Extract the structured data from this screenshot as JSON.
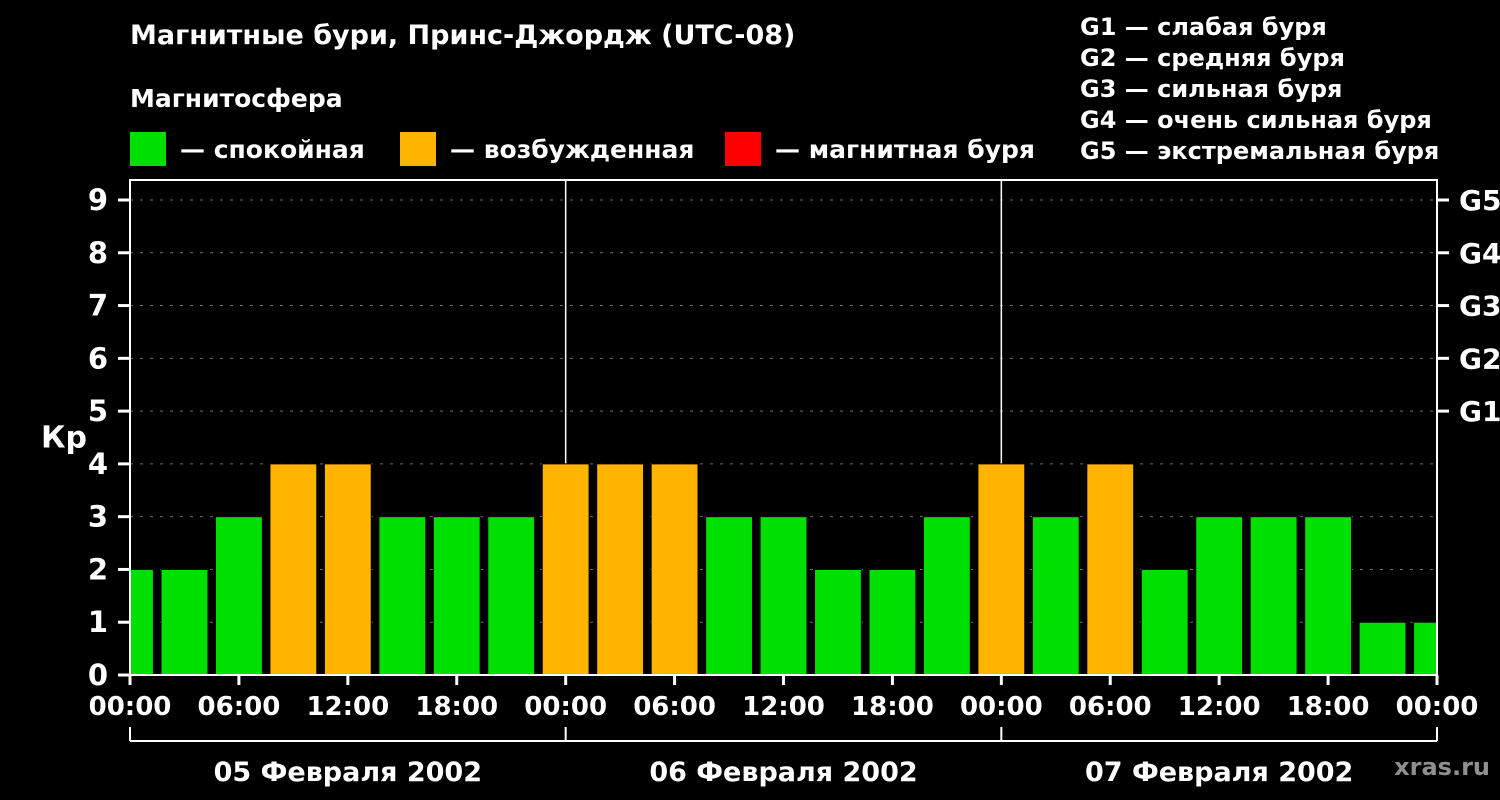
{
  "title": "Магнитные бури, Принс-Джордж (UTC-08)",
  "subtitle": "Магнитосфера",
  "legend": [
    {
      "state": "quiet",
      "label": "— спокойная",
      "color": "#00e000"
    },
    {
      "state": "active",
      "label": "— возбужденная",
      "color": "#ffb400"
    },
    {
      "state": "storm",
      "label": "— магнитная буря",
      "color": "#ff0000"
    }
  ],
  "g_legend": [
    "G1 — слабая буря",
    "G2 — средняя буря",
    "G3 — сильная буря",
    "G4 — очень сильная буря",
    "G5 — экстремальная буря"
  ],
  "watermark": "xras.ru",
  "chart_data": {
    "type": "bar",
    "title": "Магнитные бури, Принс-Джордж (UTC-08)",
    "ylabel": "Кр",
    "ylim": [
      0,
      9.4
    ],
    "yticks": [
      0,
      1,
      2,
      3,
      4,
      5,
      6,
      7,
      8,
      9
    ],
    "right_axis_ticks": [
      {
        "label": "G1",
        "value": 5
      },
      {
        "label": "G2",
        "value": 6
      },
      {
        "label": "G3",
        "value": 7
      },
      {
        "label": "G4",
        "value": 8
      },
      {
        "label": "G5",
        "value": 9
      }
    ],
    "x_hours": [
      0,
      3,
      6,
      9,
      12,
      15,
      18,
      21,
      24,
      27,
      30,
      33,
      36,
      39,
      42,
      45,
      48,
      51,
      54,
      57,
      60,
      63,
      66,
      69,
      72
    ],
    "kp_values": [
      2,
      2,
      3,
      4,
      4,
      3,
      3,
      3,
      4,
      4,
      4,
      3,
      3,
      2,
      2,
      3,
      4,
      3,
      4,
      2,
      3,
      3,
      3,
      1,
      1
    ],
    "bar_color_rule": {
      "quiet_max": 3,
      "active_max": 4
    },
    "colors": {
      "quiet": "#00e000",
      "active": "#ffb400",
      "storm": "#ff0000",
      "axis": "#ffffff",
      "grid": "#6e6e6e",
      "background": "#000000"
    },
    "x_tick_hours": [
      0,
      6,
      12,
      18,
      24,
      30,
      36,
      42,
      48,
      54,
      60,
      66,
      72
    ],
    "x_tick_labels": [
      "00:00",
      "06:00",
      "12:00",
      "18:00",
      "00:00",
      "06:00",
      "12:00",
      "18:00",
      "00:00",
      "06:00",
      "12:00",
      "18:00",
      "00:00"
    ],
    "day_boundaries_hours": [
      0,
      24,
      48,
      72
    ],
    "days": [
      {
        "label": "05 Февраля 2002",
        "start_hour": 0,
        "end_hour": 24
      },
      {
        "label": "06 Февраля 2002",
        "start_hour": 24,
        "end_hour": 48
      },
      {
        "label": "07 Февраля 2002",
        "start_hour": 48,
        "end_hour": 72
      }
    ],
    "grid": "dashed-horizontal",
    "legend_position": "top-left"
  }
}
